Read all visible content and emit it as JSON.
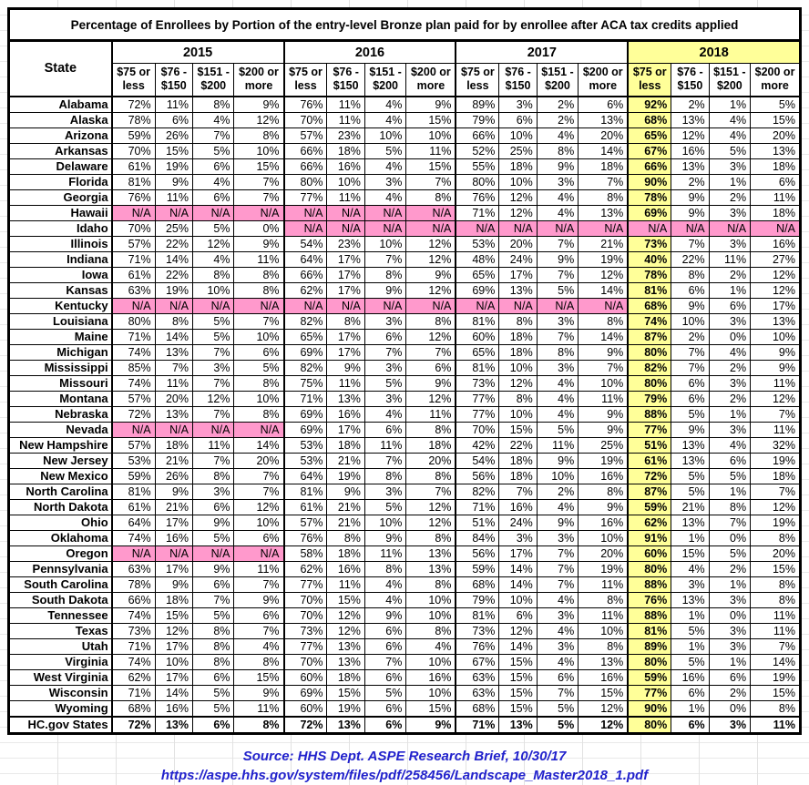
{
  "title": "Percentage of Enrollees by Portion of the entry-level Bronze plan paid for by enrollee after ACA tax credits applied",
  "header": {
    "state_label": "State",
    "years": [
      "2015",
      "2016",
      "2017",
      "2018"
    ],
    "sub_columns": [
      "$75 or less",
      "$76 - $150",
      "$151 - $200",
      "$200 or more"
    ],
    "highlighted_year": "2018"
  },
  "colors": {
    "highlight_yellow": "#FFFF99",
    "na_pink": "#FF99CC",
    "source_blue": "#2222CC",
    "border_black": "#000000"
  },
  "chart_data": {
    "type": "table",
    "title": "Percentage of Enrollees by Portion of the entry-level Bronze plan paid for by enrollee after ACA tax credits applied",
    "column_groups": [
      "2015",
      "2016",
      "2017",
      "2018"
    ],
    "sub_columns": [
      "$75 or less",
      "$76 - $150",
      "$151 - $200",
      "$200 or more"
    ]
  },
  "rows": [
    {
      "state": "Alabama",
      "values": [
        "72%",
        "11%",
        "8%",
        "9%",
        "76%",
        "11%",
        "4%",
        "9%",
        "89%",
        "3%",
        "2%",
        "6%",
        "92%",
        "2%",
        "1%",
        "5%"
      ]
    },
    {
      "state": "Alaska",
      "values": [
        "78%",
        "6%",
        "4%",
        "12%",
        "70%",
        "11%",
        "4%",
        "15%",
        "79%",
        "6%",
        "2%",
        "13%",
        "68%",
        "13%",
        "4%",
        "15%"
      ]
    },
    {
      "state": "Arizona",
      "values": [
        "59%",
        "26%",
        "7%",
        "8%",
        "57%",
        "23%",
        "10%",
        "10%",
        "66%",
        "10%",
        "4%",
        "20%",
        "65%",
        "12%",
        "4%",
        "20%"
      ]
    },
    {
      "state": "Arkansas",
      "values": [
        "70%",
        "15%",
        "5%",
        "10%",
        "66%",
        "18%",
        "5%",
        "11%",
        "52%",
        "25%",
        "8%",
        "14%",
        "67%",
        "16%",
        "5%",
        "13%"
      ]
    },
    {
      "state": "Delaware",
      "values": [
        "61%",
        "19%",
        "6%",
        "15%",
        "66%",
        "16%",
        "4%",
        "15%",
        "55%",
        "18%",
        "9%",
        "18%",
        "66%",
        "13%",
        "3%",
        "18%"
      ]
    },
    {
      "state": "Florida",
      "values": [
        "81%",
        "9%",
        "4%",
        "7%",
        "80%",
        "10%",
        "3%",
        "7%",
        "80%",
        "10%",
        "3%",
        "7%",
        "90%",
        "2%",
        "1%",
        "6%"
      ]
    },
    {
      "state": "Georgia",
      "values": [
        "76%",
        "11%",
        "6%",
        "7%",
        "77%",
        "11%",
        "4%",
        "8%",
        "76%",
        "12%",
        "4%",
        "8%",
        "78%",
        "9%",
        "2%",
        "11%"
      ]
    },
    {
      "state": "Hawaii",
      "values": [
        "N/A",
        "N/A",
        "N/A",
        "N/A",
        "N/A",
        "N/A",
        "N/A",
        "N/A",
        "71%",
        "12%",
        "4%",
        "13%",
        "69%",
        "9%",
        "3%",
        "18%"
      ]
    },
    {
      "state": "Idaho",
      "values": [
        "70%",
        "25%",
        "5%",
        "0%",
        "N/A",
        "N/A",
        "N/A",
        "N/A",
        "N/A",
        "N/A",
        "N/A",
        "N/A",
        "N/A",
        "N/A",
        "N/A",
        "N/A"
      ]
    },
    {
      "state": "Illinois",
      "values": [
        "57%",
        "22%",
        "12%",
        "9%",
        "54%",
        "23%",
        "10%",
        "12%",
        "53%",
        "20%",
        "7%",
        "21%",
        "73%",
        "7%",
        "3%",
        "16%"
      ]
    },
    {
      "state": "Indiana",
      "values": [
        "71%",
        "14%",
        "4%",
        "11%",
        "64%",
        "17%",
        "7%",
        "12%",
        "48%",
        "24%",
        "9%",
        "19%",
        "40%",
        "22%",
        "11%",
        "27%"
      ]
    },
    {
      "state": "Iowa",
      "values": [
        "61%",
        "22%",
        "8%",
        "8%",
        "66%",
        "17%",
        "8%",
        "9%",
        "65%",
        "17%",
        "7%",
        "12%",
        "78%",
        "8%",
        "2%",
        "12%"
      ]
    },
    {
      "state": "Kansas",
      "values": [
        "63%",
        "19%",
        "10%",
        "8%",
        "62%",
        "17%",
        "9%",
        "12%",
        "69%",
        "13%",
        "5%",
        "14%",
        "81%",
        "6%",
        "1%",
        "12%"
      ]
    },
    {
      "state": "Kentucky",
      "values": [
        "N/A",
        "N/A",
        "N/A",
        "N/A",
        "N/A",
        "N/A",
        "N/A",
        "N/A",
        "N/A",
        "N/A",
        "N/A",
        "N/A",
        "68%",
        "9%",
        "6%",
        "17%"
      ]
    },
    {
      "state": "Louisiana",
      "values": [
        "80%",
        "8%",
        "5%",
        "7%",
        "82%",
        "8%",
        "3%",
        "8%",
        "81%",
        "8%",
        "3%",
        "8%",
        "74%",
        "10%",
        "3%",
        "13%"
      ]
    },
    {
      "state": "Maine",
      "values": [
        "71%",
        "14%",
        "5%",
        "10%",
        "65%",
        "17%",
        "6%",
        "12%",
        "60%",
        "18%",
        "7%",
        "14%",
        "87%",
        "2%",
        "0%",
        "10%"
      ]
    },
    {
      "state": "Michigan",
      "values": [
        "74%",
        "13%",
        "7%",
        "6%",
        "69%",
        "17%",
        "7%",
        "7%",
        "65%",
        "18%",
        "8%",
        "9%",
        "80%",
        "7%",
        "4%",
        "9%"
      ]
    },
    {
      "state": "Mississippi",
      "values": [
        "85%",
        "7%",
        "3%",
        "5%",
        "82%",
        "9%",
        "3%",
        "6%",
        "81%",
        "10%",
        "3%",
        "7%",
        "82%",
        "7%",
        "2%",
        "9%"
      ]
    },
    {
      "state": "Missouri",
      "values": [
        "74%",
        "11%",
        "7%",
        "8%",
        "75%",
        "11%",
        "5%",
        "9%",
        "73%",
        "12%",
        "4%",
        "10%",
        "80%",
        "6%",
        "3%",
        "11%"
      ]
    },
    {
      "state": "Montana",
      "values": [
        "57%",
        "20%",
        "12%",
        "10%",
        "71%",
        "13%",
        "3%",
        "12%",
        "77%",
        "8%",
        "4%",
        "11%",
        "79%",
        "6%",
        "2%",
        "12%"
      ]
    },
    {
      "state": "Nebraska",
      "values": [
        "72%",
        "13%",
        "7%",
        "8%",
        "69%",
        "16%",
        "4%",
        "11%",
        "77%",
        "10%",
        "4%",
        "9%",
        "88%",
        "5%",
        "1%",
        "7%"
      ]
    },
    {
      "state": "Nevada",
      "values": [
        "N/A",
        "N/A",
        "N/A",
        "N/A",
        "69%",
        "17%",
        "6%",
        "8%",
        "70%",
        "15%",
        "5%",
        "9%",
        "77%",
        "9%",
        "3%",
        "11%"
      ]
    },
    {
      "state": "New Hampshire",
      "values": [
        "57%",
        "18%",
        "11%",
        "14%",
        "53%",
        "18%",
        "11%",
        "18%",
        "42%",
        "22%",
        "11%",
        "25%",
        "51%",
        "13%",
        "4%",
        "32%"
      ]
    },
    {
      "state": "New Jersey",
      "values": [
        "53%",
        "21%",
        "7%",
        "20%",
        "53%",
        "21%",
        "7%",
        "20%",
        "54%",
        "18%",
        "9%",
        "19%",
        "61%",
        "13%",
        "6%",
        "19%"
      ]
    },
    {
      "state": "New Mexico",
      "values": [
        "59%",
        "26%",
        "8%",
        "7%",
        "64%",
        "19%",
        "8%",
        "8%",
        "56%",
        "18%",
        "10%",
        "16%",
        "72%",
        "5%",
        "5%",
        "18%"
      ]
    },
    {
      "state": "North Carolina",
      "values": [
        "81%",
        "9%",
        "3%",
        "7%",
        "81%",
        "9%",
        "3%",
        "7%",
        "82%",
        "7%",
        "2%",
        "8%",
        "87%",
        "5%",
        "1%",
        "7%"
      ]
    },
    {
      "state": "North Dakota",
      "values": [
        "61%",
        "21%",
        "6%",
        "12%",
        "61%",
        "21%",
        "5%",
        "12%",
        "71%",
        "16%",
        "4%",
        "9%",
        "59%",
        "21%",
        "8%",
        "12%"
      ]
    },
    {
      "state": "Ohio",
      "values": [
        "64%",
        "17%",
        "9%",
        "10%",
        "57%",
        "21%",
        "10%",
        "12%",
        "51%",
        "24%",
        "9%",
        "16%",
        "62%",
        "13%",
        "7%",
        "19%"
      ]
    },
    {
      "state": "Oklahoma",
      "values": [
        "74%",
        "16%",
        "5%",
        "6%",
        "76%",
        "8%",
        "9%",
        "8%",
        "84%",
        "3%",
        "3%",
        "10%",
        "91%",
        "1%",
        "0%",
        "8%"
      ]
    },
    {
      "state": "Oregon",
      "values": [
        "N/A",
        "N/A",
        "N/A",
        "N/A",
        "58%",
        "18%",
        "11%",
        "13%",
        "56%",
        "17%",
        "7%",
        "20%",
        "60%",
        "15%",
        "5%",
        "20%"
      ]
    },
    {
      "state": "Pennsylvania",
      "values": [
        "63%",
        "17%",
        "9%",
        "11%",
        "62%",
        "16%",
        "8%",
        "13%",
        "59%",
        "14%",
        "7%",
        "19%",
        "80%",
        "4%",
        "2%",
        "15%"
      ]
    },
    {
      "state": "South Carolina",
      "values": [
        "78%",
        "9%",
        "6%",
        "7%",
        "77%",
        "11%",
        "4%",
        "8%",
        "68%",
        "14%",
        "7%",
        "11%",
        "88%",
        "3%",
        "1%",
        "8%"
      ]
    },
    {
      "state": "South Dakota",
      "values": [
        "66%",
        "18%",
        "7%",
        "9%",
        "70%",
        "15%",
        "4%",
        "10%",
        "79%",
        "10%",
        "4%",
        "8%",
        "76%",
        "13%",
        "3%",
        "8%"
      ]
    },
    {
      "state": "Tennessee",
      "values": [
        "74%",
        "15%",
        "5%",
        "6%",
        "70%",
        "12%",
        "9%",
        "10%",
        "81%",
        "6%",
        "3%",
        "11%",
        "88%",
        "1%",
        "0%",
        "11%"
      ]
    },
    {
      "state": "Texas",
      "values": [
        "73%",
        "12%",
        "8%",
        "7%",
        "73%",
        "12%",
        "6%",
        "8%",
        "73%",
        "12%",
        "4%",
        "10%",
        "81%",
        "5%",
        "3%",
        "11%"
      ]
    },
    {
      "state": "Utah",
      "values": [
        "71%",
        "17%",
        "8%",
        "4%",
        "77%",
        "13%",
        "6%",
        "4%",
        "76%",
        "14%",
        "3%",
        "8%",
        "89%",
        "1%",
        "3%",
        "7%"
      ]
    },
    {
      "state": "Virginia",
      "values": [
        "74%",
        "10%",
        "8%",
        "8%",
        "70%",
        "13%",
        "7%",
        "10%",
        "67%",
        "15%",
        "4%",
        "13%",
        "80%",
        "5%",
        "1%",
        "14%"
      ]
    },
    {
      "state": "West Virginia",
      "values": [
        "62%",
        "17%",
        "6%",
        "15%",
        "60%",
        "18%",
        "6%",
        "16%",
        "63%",
        "15%",
        "6%",
        "16%",
        "59%",
        "16%",
        "6%",
        "19%"
      ]
    },
    {
      "state": "Wisconsin",
      "values": [
        "71%",
        "14%",
        "5%",
        "9%",
        "69%",
        "15%",
        "5%",
        "10%",
        "63%",
        "15%",
        "7%",
        "15%",
        "77%",
        "6%",
        "2%",
        "15%"
      ]
    },
    {
      "state": "Wyoming",
      "values": [
        "68%",
        "16%",
        "5%",
        "11%",
        "60%",
        "19%",
        "6%",
        "15%",
        "68%",
        "15%",
        "5%",
        "12%",
        "90%",
        "1%",
        "0%",
        "8%"
      ]
    },
    {
      "state": "HC.gov States",
      "bold": true,
      "values": [
        "72%",
        "13%",
        "6%",
        "8%",
        "72%",
        "13%",
        "6%",
        "9%",
        "71%",
        "13%",
        "5%",
        "12%",
        "80%",
        "6%",
        "3%",
        "11%"
      ]
    }
  ],
  "footer": {
    "source_line": "Source: HHS Dept. ASPE Research Brief, 10/30/17",
    "url_line": "https://aspe.hhs.gov/system/files/pdf/258456/Landscape_Master2018_1.pdf"
  }
}
